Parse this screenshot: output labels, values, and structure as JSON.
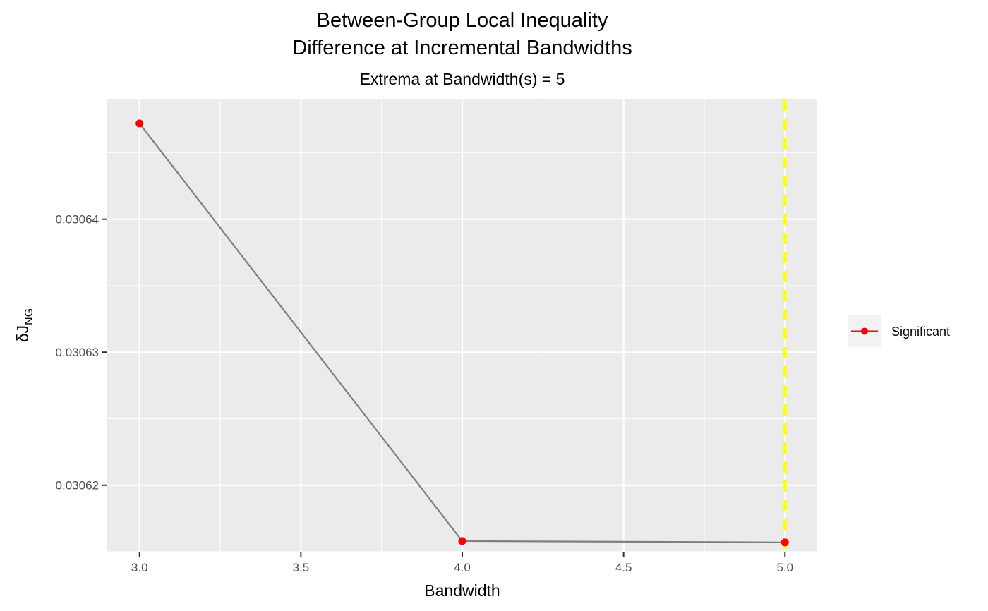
{
  "chart_data": {
    "type": "line",
    "title_lines": [
      "Between-Group Local Inequality",
      "Difference at Incremental Bandwidths"
    ],
    "subtitle": "Extrema at Bandwidth(s) = 5",
    "xlabel": "Bandwidth",
    "ylabel": "δJ",
    "ylabel_subscript": "NG",
    "x_ticks": [
      3.0,
      3.5,
      4.0,
      4.5,
      5.0
    ],
    "x_tick_labels": [
      "3.0",
      "3.5",
      "4.0",
      "4.5",
      "5.0"
    ],
    "y_ticks": [
      0.03062,
      0.03063,
      0.03064
    ],
    "y_tick_labels": [
      "0.03062",
      "0.03063",
      "0.03064"
    ],
    "xlim": [
      2.9,
      5.1
    ],
    "ylim": [
      0.030615,
      0.030649
    ],
    "grid": true,
    "legend_position": "right",
    "series": [
      {
        "name": "Significant",
        "x": [
          3.0,
          4.0,
          5.0
        ],
        "y": [
          0.0306472,
          0.0306158,
          0.0306157
        ],
        "line_color": "#7f7f7f",
        "point_color": "#ff0000"
      }
    ],
    "extrema_x": 5.0,
    "extrema_line_color": "#ffff00",
    "panel_background": "#ebebeb",
    "grid_color": "#ffffff"
  }
}
